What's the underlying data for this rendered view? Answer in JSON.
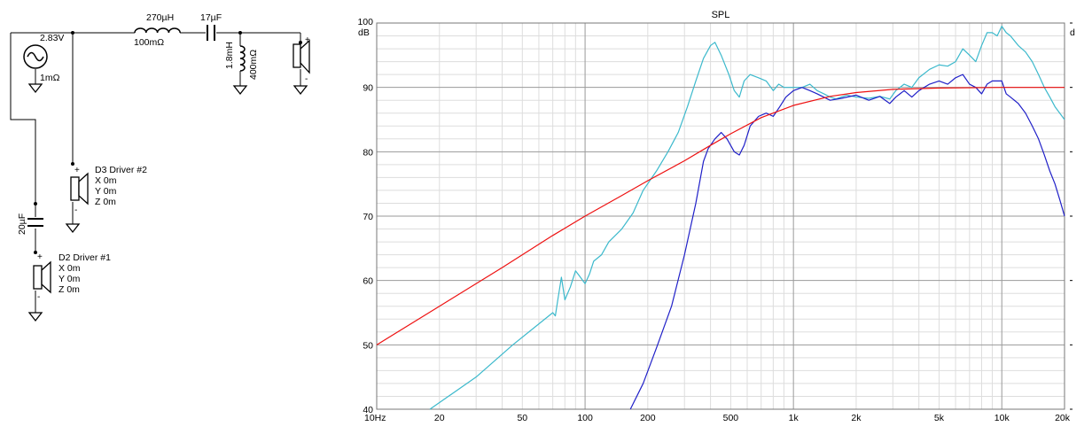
{
  "schematic": {
    "source": {
      "voltage": "2.83V",
      "resistance": "1mΩ"
    },
    "series_inductor": {
      "value": "270µH",
      "resistance": "100mΩ"
    },
    "series_capacitor": {
      "value": "17µF"
    },
    "shunt_inductor": {
      "value": "1.8mH",
      "resistance": "400mΩ"
    },
    "tweeter_polarity": {
      "plus": "+",
      "minus": "-"
    },
    "driver_d3": {
      "name": "D3 Driver #2",
      "x": "X 0m",
      "y": "Y 0m",
      "z": "Z 0m",
      "plus": "+",
      "minus": "-"
    },
    "driver_cap": {
      "value": "20µF"
    },
    "driver_d2": {
      "name": "D2 Driver #1",
      "x": "X 0m",
      "y": "Y 0m",
      "z": "Z 0m",
      "plus": "+",
      "minus": "-"
    }
  },
  "chart_data": {
    "type": "line",
    "title": "SPL",
    "ylabel": "dB",
    "right_edge_label": "d",
    "xscale": "log",
    "xlim": [
      10,
      20000
    ],
    "ylim": [
      40,
      100
    ],
    "x_tick_labels": [
      {
        "value": 10,
        "label": "10Hz"
      },
      {
        "value": 20,
        "label": "20"
      },
      {
        "value": 50,
        "label": "50"
      },
      {
        "value": 100,
        "label": "100"
      },
      {
        "value": 200,
        "label": "200"
      },
      {
        "value": 500,
        "label": "500"
      },
      {
        "value": 1000,
        "label": "1k"
      },
      {
        "value": 2000,
        "label": "2k"
      },
      {
        "value": 5000,
        "label": "5k"
      },
      {
        "value": 10000,
        "label": "10k"
      },
      {
        "value": 20000,
        "label": "20k"
      }
    ],
    "y_tick_labels": [
      {
        "value": 100,
        "label": "100"
      },
      {
        "value": 90,
        "label": "90"
      },
      {
        "value": 80,
        "label": "80"
      },
      {
        "value": 70,
        "label": "70"
      },
      {
        "value": 60,
        "label": "60"
      },
      {
        "value": 50,
        "label": "50"
      },
      {
        "value": 40,
        "label": "40"
      }
    ],
    "grid": true,
    "series": [
      {
        "color": "#3cb9cc",
        "points": [
          [
            18,
            40
          ],
          [
            30,
            45
          ],
          [
            45,
            50
          ],
          [
            70,
            55
          ],
          [
            72,
            54.5
          ],
          [
            74,
            57
          ],
          [
            77,
            60.5
          ],
          [
            80,
            57
          ],
          [
            85,
            59
          ],
          [
            90,
            61.5
          ],
          [
            95,
            60.5
          ],
          [
            100,
            59.5
          ],
          [
            105,
            61
          ],
          [
            110,
            63
          ],
          [
            120,
            64
          ],
          [
            130,
            66
          ],
          [
            150,
            68
          ],
          [
            170,
            70.5
          ],
          [
            190,
            74
          ],
          [
            220,
            77
          ],
          [
            250,
            80
          ],
          [
            280,
            83
          ],
          [
            310,
            87
          ],
          [
            340,
            91
          ],
          [
            370,
            94.5
          ],
          [
            400,
            96.5
          ],
          [
            420,
            97
          ],
          [
            450,
            95
          ],
          [
            490,
            92
          ],
          [
            520,
            89.5
          ],
          [
            550,
            88.5
          ],
          [
            580,
            91
          ],
          [
            620,
            92
          ],
          [
            680,
            91.5
          ],
          [
            740,
            91
          ],
          [
            800,
            89.5
          ],
          [
            850,
            90.5
          ],
          [
            900,
            90
          ],
          [
            1000,
            90
          ],
          [
            1100,
            90
          ],
          [
            1200,
            90.5
          ],
          [
            1300,
            89.5
          ],
          [
            1400,
            89
          ],
          [
            1500,
            88.5
          ],
          [
            1600,
            88.2
          ],
          [
            1800,
            88.8
          ],
          [
            2000,
            88.5
          ],
          [
            2300,
            88.3
          ],
          [
            2600,
            88.6
          ],
          [
            2900,
            88.2
          ],
          [
            3100,
            89.5
          ],
          [
            3400,
            90.5
          ],
          [
            3700,
            90
          ],
          [
            4000,
            91.5
          ],
          [
            4500,
            92.8
          ],
          [
            5000,
            93.5
          ],
          [
            5500,
            93.3
          ],
          [
            6000,
            94
          ],
          [
            6500,
            96
          ],
          [
            7000,
            95
          ],
          [
            7500,
            94
          ],
          [
            8000,
            96.5
          ],
          [
            8500,
            98.5
          ],
          [
            9000,
            98.5
          ],
          [
            9500,
            98
          ],
          [
            10000,
            99.5
          ],
          [
            10500,
            98.5
          ],
          [
            11000,
            98
          ],
          [
            12000,
            96.5
          ],
          [
            13000,
            95.5
          ],
          [
            14000,
            94
          ],
          [
            15000,
            92
          ],
          [
            16000,
            90
          ],
          [
            17000,
            88.5
          ],
          [
            18000,
            87
          ],
          [
            20000,
            85
          ]
        ]
      },
      {
        "color": "#2020c8",
        "points": [
          [
            165,
            40
          ],
          [
            190,
            44
          ],
          [
            220,
            49.5
          ],
          [
            260,
            56
          ],
          [
            300,
            64
          ],
          [
            340,
            72
          ],
          [
            370,
            78.5
          ],
          [
            390,
            80.5
          ],
          [
            420,
            82
          ],
          [
            450,
            83
          ],
          [
            480,
            82
          ],
          [
            520,
            80
          ],
          [
            550,
            79.5
          ],
          [
            580,
            81
          ],
          [
            620,
            84
          ],
          [
            680,
            85.5
          ],
          [
            740,
            86
          ],
          [
            800,
            85.5
          ],
          [
            860,
            87
          ],
          [
            920,
            88.5
          ],
          [
            1000,
            89.5
          ],
          [
            1100,
            90
          ],
          [
            1200,
            89.5
          ],
          [
            1300,
            89
          ],
          [
            1500,
            88
          ],
          [
            1700,
            88.3
          ],
          [
            2000,
            88.8
          ],
          [
            2300,
            88
          ],
          [
            2600,
            88.6
          ],
          [
            2900,
            87.5
          ],
          [
            3100,
            88.5
          ],
          [
            3400,
            89.5
          ],
          [
            3700,
            88.5
          ],
          [
            4000,
            89.5
          ],
          [
            4500,
            90.5
          ],
          [
            5000,
            91
          ],
          [
            5500,
            90.5
          ],
          [
            6000,
            91.5
          ],
          [
            6500,
            92
          ],
          [
            7000,
            90.5
          ],
          [
            7500,
            90
          ],
          [
            8000,
            89
          ],
          [
            8500,
            90.5
          ],
          [
            9000,
            91
          ],
          [
            9500,
            91
          ],
          [
            10000,
            91
          ],
          [
            10500,
            89
          ],
          [
            11000,
            88.5
          ],
          [
            12000,
            87.5
          ],
          [
            13000,
            86
          ],
          [
            14000,
            84
          ],
          [
            15000,
            82
          ],
          [
            16000,
            79.5
          ],
          [
            17000,
            77
          ],
          [
            18000,
            75
          ],
          [
            19000,
            72.5
          ],
          [
            20000,
            70
          ]
        ]
      },
      {
        "color": "#ee1111",
        "points": [
          [
            10,
            50
          ],
          [
            20,
            56
          ],
          [
            40,
            62
          ],
          [
            70,
            67
          ],
          [
            100,
            70
          ],
          [
            150,
            73.2
          ],
          [
            200,
            75.5
          ],
          [
            300,
            78.6
          ],
          [
            400,
            81
          ],
          [
            500,
            82.8
          ],
          [
            700,
            85.3
          ],
          [
            1000,
            87.2
          ],
          [
            1500,
            88.6
          ],
          [
            2000,
            89.2
          ],
          [
            3000,
            89.7
          ],
          [
            5000,
            89.9
          ],
          [
            10000,
            90
          ],
          [
            20000,
            90
          ]
        ]
      }
    ]
  }
}
